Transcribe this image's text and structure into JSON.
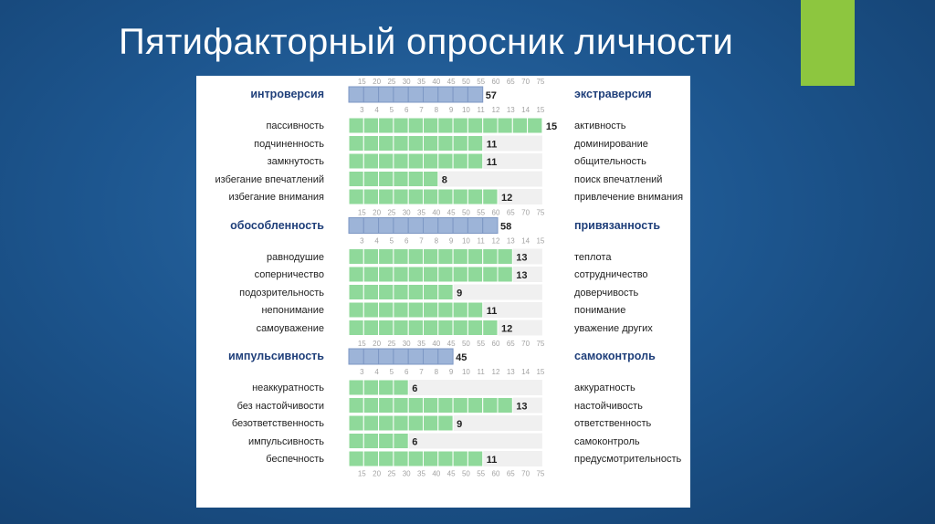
{
  "slide": {
    "title": "Пятифакторный опросник личности",
    "accent_color": "#8dc63f"
  },
  "chart_data": {
    "type": "bar",
    "title": "Пятифакторный опросник личности",
    "orientation": "horizontal",
    "colors": {
      "factor_bar": "#9db4d8",
      "factor_bar_border": "#7d97c4",
      "subscale_bar": "#8fd99a",
      "subscale_bar_border": "#ffffff",
      "track": "#f0f0f0",
      "tick_text": "#a3a3a3",
      "factor_label": "#1f3f7a"
    },
    "factor_scale": {
      "min": 10,
      "max": 75,
      "ticks": [
        "15",
        "20",
        "25",
        "30",
        "35",
        "40",
        "45",
        "50",
        "55",
        "60",
        "65",
        "70",
        "75"
      ]
    },
    "subscale_scale": {
      "min": 2,
      "max": 15,
      "ticks": [
        "3",
        "4",
        "5",
        "6",
        "7",
        "8",
        "9",
        "10",
        "11",
        "12",
        "13",
        "14",
        "15"
      ]
    },
    "groups": [
      {
        "factor": {
          "left": "интроверсия",
          "right": "экстраверсия",
          "value": 57
        },
        "subscales": [
          {
            "left": "пассивность",
            "right": "активность",
            "value": 15
          },
          {
            "left": "подчиненность",
            "right": "доминирование",
            "value": 11
          },
          {
            "left": "замкнутость",
            "right": "общительность",
            "value": 11
          },
          {
            "left": "избегание впечатлений",
            "right": "поиск впечатлений",
            "value": 8
          },
          {
            "left": "избегание внимания",
            "right": "привлечение внимания",
            "value": 12
          }
        ]
      },
      {
        "factor": {
          "left": "обособленность",
          "right": "привязанность",
          "value": 58
        },
        "subscales": [
          {
            "left": "равнодушие",
            "right": "теплота",
            "value": 13
          },
          {
            "left": "соперничество",
            "right": "сотрудничество",
            "value": 13
          },
          {
            "left": "подозрительность",
            "right": "доверчивость",
            "value": 9
          },
          {
            "left": "непонимание",
            "right": "понимание",
            "value": 11
          },
          {
            "left": "самоуважение",
            "right": "уважение других",
            "value": 12
          }
        ]
      },
      {
        "factor": {
          "left": "импульсивность",
          "right": "самоконтроль",
          "value": 45
        },
        "subscales": [
          {
            "left": "неаккуратность",
            "right": "аккуратность",
            "value": 6
          },
          {
            "left": "без настойчивости",
            "right": "настойчивость",
            "value": 13
          },
          {
            "left": "безответственность",
            "right": "ответственность",
            "value": 9
          },
          {
            "left": "импульсивность",
            "right": "самоконтроль",
            "value": 6
          },
          {
            "left": "беспечность",
            "right": "предусмотрительность",
            "value": 11
          }
        ]
      }
    ]
  }
}
